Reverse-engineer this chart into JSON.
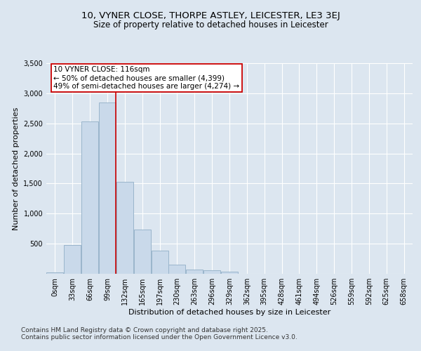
{
  "title_line1": "10, VYNER CLOSE, THORPE ASTLEY, LEICESTER, LE3 3EJ",
  "title_line2": "Size of property relative to detached houses in Leicester",
  "xlabel": "Distribution of detached houses by size in Leicester",
  "ylabel": "Number of detached properties",
  "bar_labels": [
    "0sqm",
    "33sqm",
    "66sqm",
    "99sqm",
    "132sqm",
    "165sqm",
    "197sqm",
    "230sqm",
    "263sqm",
    "296sqm",
    "329sqm",
    "362sqm",
    "395sqm",
    "428sqm",
    "461sqm",
    "494sqm",
    "526sqm",
    "559sqm",
    "592sqm",
    "625sqm",
    "658sqm"
  ],
  "bar_values": [
    20,
    480,
    2530,
    2850,
    1530,
    730,
    390,
    155,
    70,
    60,
    40,
    0,
    0,
    0,
    0,
    0,
    0,
    0,
    0,
    0,
    0
  ],
  "bar_color": "#c9d9ea",
  "bar_edgecolor": "#9ab5cc",
  "vline_x": 3.5,
  "vline_color": "#cc0000",
  "annotation_text": "10 VYNER CLOSE: 116sqm\n← 50% of detached houses are smaller (4,399)\n49% of semi-detached houses are larger (4,274) →",
  "annotation_box_color": "white",
  "annotation_box_edgecolor": "#cc0000",
  "ylim": [
    0,
    3500
  ],
  "yticks": [
    0,
    500,
    1000,
    1500,
    2000,
    2500,
    3000,
    3500
  ],
  "bg_color": "#dce6f0",
  "plot_bg_color": "#dce6f0",
  "grid_color": "#c8d4e0",
  "footnote": "Contains HM Land Registry data © Crown copyright and database right 2025.\nContains public sector information licensed under the Open Government Licence v3.0.",
  "title_fontsize": 9.5,
  "subtitle_fontsize": 8.5,
  "tick_fontsize": 7,
  "ylabel_fontsize": 8,
  "xlabel_fontsize": 8,
  "annotation_fontsize": 7.5,
  "footnote_fontsize": 6.5
}
